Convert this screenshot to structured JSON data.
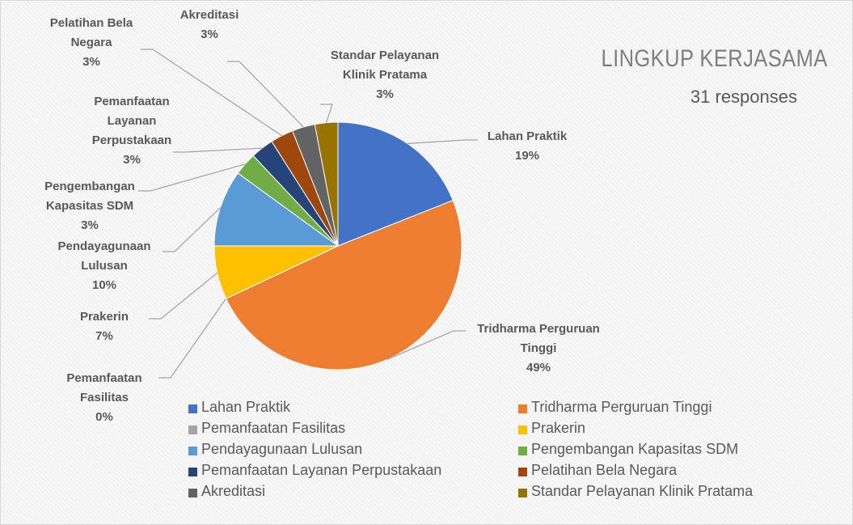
{
  "chart_data": {
    "type": "pie",
    "title": "LINGKUP KERJASAMA",
    "subtitle": "31 responses",
    "categories": [
      "Lahan Praktik",
      "Tridharma Perguruan Tinggi",
      "Pemanfaatan Fasilitas",
      "Prakerin",
      "Pendayagunaan Lulusan",
      "Pengembangan Kapasitas SDM",
      "Pemanfaatan Layanan Perpustakaan",
      "Pelatihan Bela Negara",
      "Akreditasi",
      "Standar Pelayanan Klinik Pratama"
    ],
    "values": [
      19,
      49,
      0,
      7,
      10,
      3,
      3,
      3,
      3,
      3
    ],
    "value_labels": [
      "19%",
      "49%",
      "0%",
      "7%",
      "10%",
      "3%",
      "3%",
      "3%",
      "3%",
      "3%"
    ],
    "colors": [
      "#4472c4",
      "#ed7d31",
      "#a5a5a5",
      "#ffc000",
      "#5b9bd5",
      "#70ad47",
      "#264478",
      "#9e480e",
      "#636363",
      "#997300"
    ],
    "legend": "bottom"
  }
}
